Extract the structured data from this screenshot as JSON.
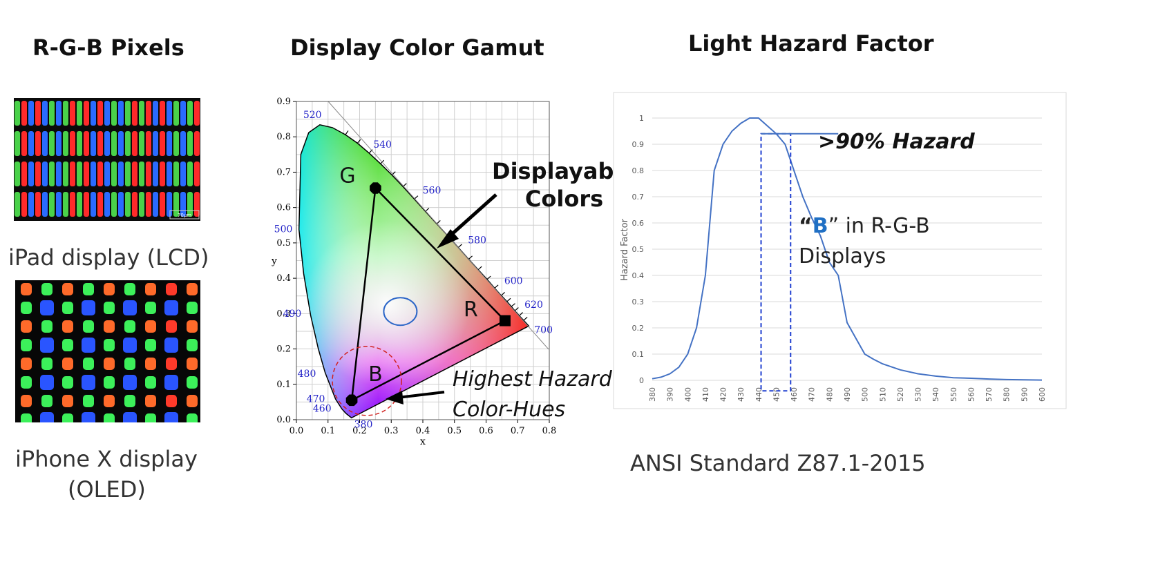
{
  "left": {
    "title": "R-G-B Pixels",
    "lcd_caption": "iPad display (LCD)",
    "lcd_scale_label": "70µm",
    "oled_caption_line1": "iPhone X display",
    "oled_caption_line2": "(OLED)"
  },
  "middle": {
    "title": "Display Color Gamut",
    "annotation_displayable_line1": "Displayable",
    "annotation_displayable_line2": "Colors",
    "annotation_hazard_line1": "Highest Hazard",
    "annotation_hazard_line2": "Color-Hues",
    "vertex_labels": {
      "G": "G",
      "R": "R",
      "B": "B"
    }
  },
  "right": {
    "title": "Light Hazard Factor",
    "annotation_hazard": ">90% Hazard",
    "annotation_b_prefix": "“",
    "annotation_b_letter": "B",
    "annotation_b_suffix": "” in R-G-B",
    "annotation_b_line2": "Displays",
    "footer": "ANSI Standard Z87.1-2015"
  },
  "colors": {
    "accent_blue": "#4472c4",
    "b_letter": "#1f6fc4",
    "wavelength_label": "#2323c8",
    "hazard_region": "#d0201e"
  },
  "chart_data": [
    {
      "type": "scatter",
      "title": "",
      "xlabel": "x",
      "ylabel": "y",
      "xlim": [
        0.0,
        0.8
      ],
      "ylim": [
        0.0,
        0.9
      ],
      "x_ticks": [
        "0.0",
        "0.1",
        "0.2",
        "0.3",
        "0.4",
        "0.5",
        "0.6",
        "0.7",
        "0.8"
      ],
      "y_ticks": [
        "0.0",
        "0.1",
        "0.2",
        "0.3",
        "0.4",
        "0.5",
        "0.6",
        "0.7",
        "0.8",
        "0.9"
      ],
      "grid": true,
      "spectral_locus_labels": [
        {
          "label": "380",
          "x": 0.1741,
          "y": 0.005
        },
        {
          "label": "460",
          "x": 0.144,
          "y": 0.03
        },
        {
          "label": "470",
          "x": 0.124,
          "y": 0.058
        },
        {
          "label": "480",
          "x": 0.091,
          "y": 0.133
        },
        {
          "label": "490",
          "x": 0.045,
          "y": 0.295
        },
        {
          "label": "500",
          "x": 0.008,
          "y": 0.538
        },
        {
          "label": "520",
          "x": 0.074,
          "y": 0.834
        },
        {
          "label": "540",
          "x": 0.23,
          "y": 0.754
        },
        {
          "label": "560",
          "x": 0.373,
          "y": 0.624
        },
        {
          "label": "580",
          "x": 0.512,
          "y": 0.487
        },
        {
          "label": "600",
          "x": 0.627,
          "y": 0.372
        },
        {
          "label": "620",
          "x": 0.691,
          "y": 0.308
        },
        {
          "label": "700",
          "x": 0.735,
          "y": 0.265
        }
      ],
      "gamut_triangle": [
        {
          "name": "G",
          "x": 0.25,
          "y": 0.655
        },
        {
          "name": "R",
          "x": 0.66,
          "y": 0.28
        },
        {
          "name": "B",
          "x": 0.175,
          "y": 0.055
        }
      ],
      "white_point_ellipse": {
        "x": 0.32,
        "y": 0.31
      }
    },
    {
      "type": "line",
      "title": "",
      "xlabel": "",
      "ylabel": "Hazard Factor",
      "ylim": [
        0,
        1
      ],
      "y_ticks": [
        "0",
        "0.1",
        "0.2",
        "0.3",
        "0.4",
        "0.5",
        "0.6",
        "0.7",
        "0.8",
        "0.9",
        "1"
      ],
      "categories": [
        "380",
        "390",
        "400",
        "410",
        "420",
        "430",
        "440",
        "450",
        "460",
        "470",
        "480",
        "490",
        "500",
        "510",
        "520",
        "530",
        "540",
        "550",
        "560",
        "570",
        "580",
        "590",
        "600"
      ],
      "grid": true,
      "series": [
        {
          "x": [
            380,
            385,
            390,
            395,
            400,
            405,
            410,
            415,
            420,
            425,
            430,
            435,
            440,
            445,
            450,
            455,
            460,
            465,
            470,
            475,
            480,
            485,
            490,
            495,
            500,
            505,
            510,
            520,
            530,
            540,
            550,
            560,
            570,
            580,
            590,
            600
          ],
          "values": [
            0.006,
            0.012,
            0.025,
            0.05,
            0.1,
            0.2,
            0.4,
            0.8,
            0.9,
            0.95,
            0.98,
            1.0,
            1.0,
            0.97,
            0.94,
            0.9,
            0.8,
            0.7,
            0.62,
            0.55,
            0.45,
            0.4,
            0.22,
            0.16,
            0.1,
            0.08,
            0.063,
            0.04,
            0.025,
            0.016,
            0.01,
            0.008,
            0.005,
            0.003,
            0.002,
            0.001
          ]
        }
      ],
      "highlight_range": [
        443,
        455
      ]
    }
  ]
}
